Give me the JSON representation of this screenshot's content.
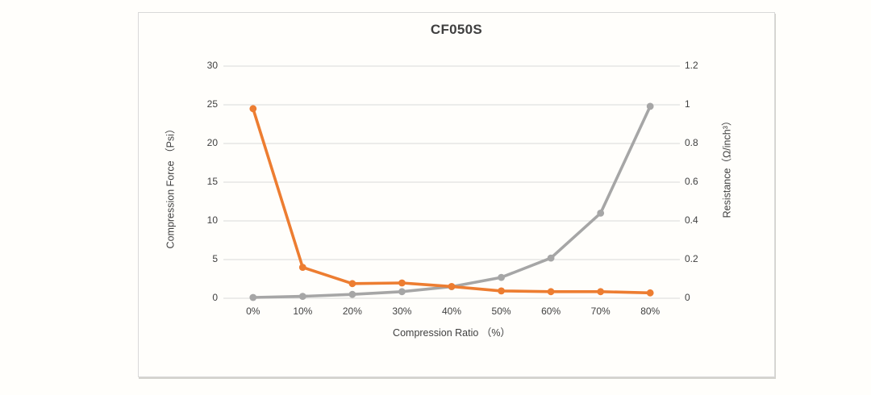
{
  "chart_data": {
    "type": "line",
    "title": "CF050S",
    "categories": [
      "0%",
      "10%",
      "20%",
      "30%",
      "40%",
      "50%",
      "60%",
      "70%",
      "80%"
    ],
    "xlabel": "Compression Ratio （%）",
    "axes": {
      "left": {
        "label": "Compression Force （Psi）",
        "min": 0,
        "max": 30,
        "tick_labels": [
          "30",
          "25",
          "20",
          "15",
          "10",
          "5",
          "0"
        ]
      },
      "right": {
        "label": "Resistance（Ω/inch³）",
        "min": 0,
        "max": 1.2,
        "tick_labels": [
          "1.2",
          "1",
          "0.8",
          "0.6",
          "0.4",
          "0.2",
          "0"
        ]
      }
    },
    "grid": true,
    "legend": "none",
    "series": [
      {
        "name": "Compression Force (Psi)",
        "axis": "left",
        "color": "#a6a6a6",
        "values": [
          0.1,
          0.25,
          0.5,
          0.85,
          1.5,
          2.7,
          5.2,
          11,
          24.8
        ]
      },
      {
        "name": "Resistance (Ω/inch³)",
        "axis": "right",
        "color": "#ed7d31",
        "values": [
          0.98,
          0.16,
          0.076,
          0.079,
          0.061,
          0.038,
          0.034,
          0.034,
          0.028
        ]
      }
    ],
    "colors": {
      "grid": "#d9d9d9",
      "frame_border": "#d9d9d9",
      "text": "#404040"
    }
  }
}
